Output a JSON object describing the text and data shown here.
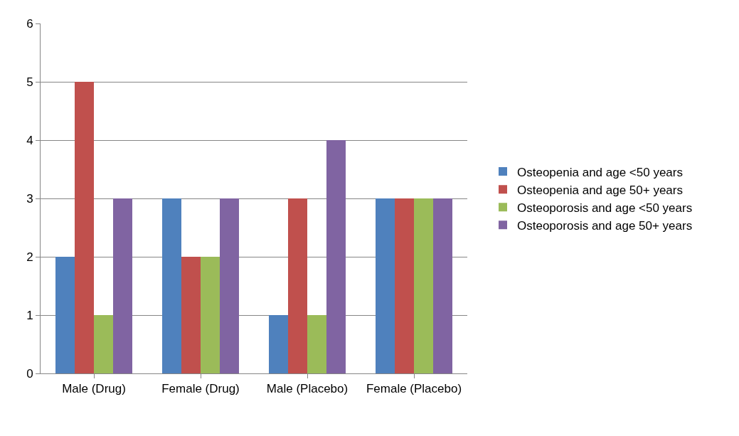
{
  "chart_data": {
    "type": "bar",
    "categories": [
      "Male (Drug)",
      "Female (Drug)",
      "Male (Placebo)",
      "Female (Placebo)"
    ],
    "series": [
      {
        "name": "Osteopenia and age <50 years",
        "color": "#4f81bd",
        "values": [
          2,
          3,
          1,
          3
        ]
      },
      {
        "name": "Osteopenia and age 50+ years",
        "color": "#c0504d",
        "values": [
          5,
          2,
          3,
          3
        ]
      },
      {
        "name": "Osteoporosis and age <50 years",
        "color": "#9bbb59",
        "values": [
          1,
          2,
          1,
          3
        ]
      },
      {
        "name": "Osteoporosis and age 50+ years",
        "color": "#8064a2",
        "values": [
          3,
          3,
          4,
          3
        ]
      }
    ],
    "ylim": [
      0,
      6
    ],
    "yticks": [
      0,
      1,
      2,
      3,
      4,
      5,
      6
    ],
    "grid": "y",
    "legend": "right"
  }
}
